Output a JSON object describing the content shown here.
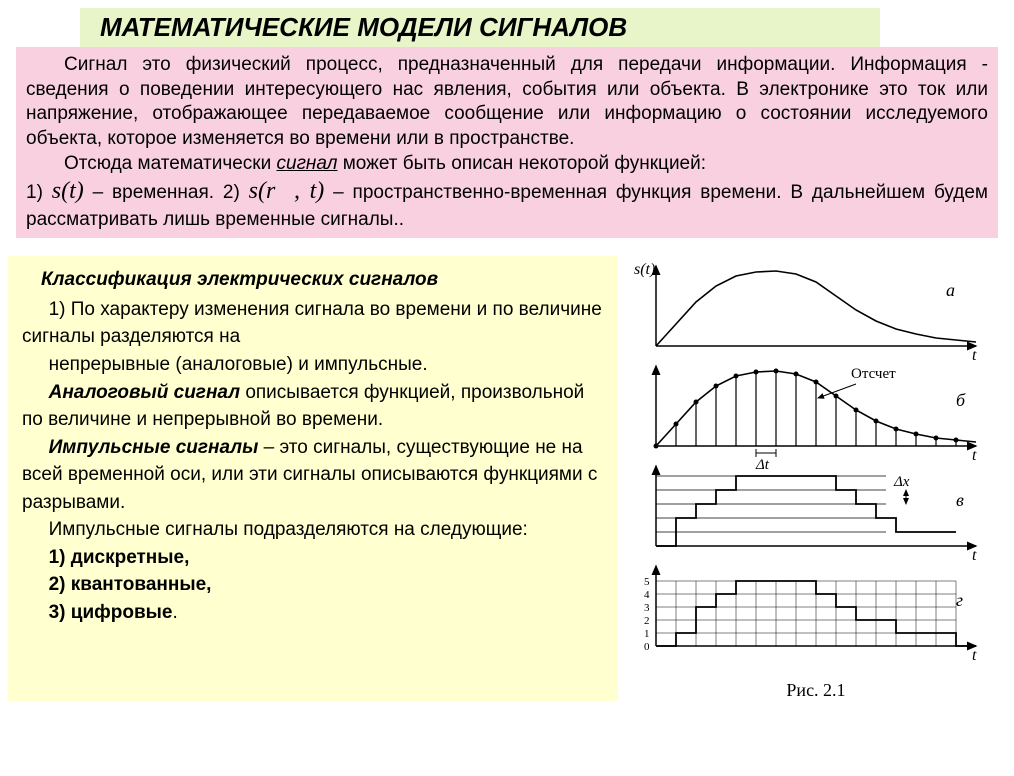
{
  "title": "МАТЕМАТИЧЕСКИЕ МОДЕЛИ СИГНАЛОВ",
  "intro": {
    "p1": "Сигнал это физический процесс, предназначенный для передачи информации. Информация - сведения о поведении интересующего нас явления, события или объекта.  В электронике это ток или напряжение, отображающее передаваемое сообщение или информацию о состоянии исследуемого объекта, которое изменяется во времени или в пространстве.",
    "p2_a": "Отсюда математически ",
    "p2_sig": "сигнал",
    "p2_b": " может быть описан некоторой функцией:",
    "f1_pre": "1) ",
    "f1": "s(t)",
    "f1_post": " – временная.    2) ",
    "f2": "s(r⃗, t)",
    "f2_post": "    – пространственно-временная функция времени. В дальнейшем будем рассматривать лишь временные сигналы.."
  },
  "class": {
    "heading": "Классификация электрических сигналов",
    "p1a": "1) По характеру изменения сигнала во времени и по величине сигналы разделяются на",
    "p1b": "непрерывные (аналоговые) и импульсные.",
    "p2_bi": "Аналоговый сигнал",
    "p2_rest": " описывается функцией, произвольной по величине и непрерывной во времени.",
    "p3_bi": "Импульсные сигналы",
    "p3_rest": " – это сигналы, существующие не на всей временной оси, или эти сигналы описываются функциями с разрывами.",
    "p4": "Импульсные сигналы подразделяются на следующие:",
    "i1": "1) дискретные,",
    "i2": "2) квантованные,",
    "i3": "3) цифровые",
    "dot": "."
  },
  "figure": {
    "caption": "Рис. 2.1",
    "y_label": "s(t)",
    "x_label": "t",
    "panel_a": "а",
    "panel_b": "б",
    "panel_c": "в",
    "panel_d": "г",
    "sample_label": "Отсчет",
    "dt_label": "Δt",
    "dx_label": "Δx",
    "digital_ticks": [
      "0",
      "1",
      "2",
      "3",
      "4",
      "5"
    ],
    "curve_points": [
      [
        0,
        80
      ],
      [
        20,
        58
      ],
      [
        40,
        36
      ],
      [
        60,
        20
      ],
      [
        80,
        10
      ],
      [
        100,
        6
      ],
      [
        120,
        5
      ],
      [
        140,
        8
      ],
      [
        160,
        16
      ],
      [
        180,
        30
      ],
      [
        200,
        44
      ],
      [
        220,
        55
      ],
      [
        240,
        63
      ],
      [
        260,
        68
      ],
      [
        280,
        72
      ],
      [
        300,
        74
      ],
      [
        320,
        76
      ]
    ],
    "colors": {
      "stroke": "#000000",
      "bg": "#ffffff",
      "title_bg": "#e8f5c8",
      "intro_bg": "#f8d0e0",
      "class_bg": "#ffffd0"
    },
    "font_family": "Times New Roman",
    "axis_stroke_width": 1.5,
    "curve_stroke_width": 1.6
  }
}
